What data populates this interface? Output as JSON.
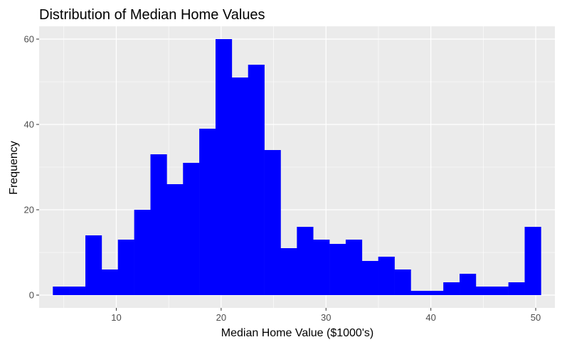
{
  "chart_data": {
    "type": "bar",
    "subtype": "histogram",
    "title": "Distribution of Median Home Values",
    "xlabel": "Median Home Value ($1000's)",
    "ylabel": "Frequency",
    "xlim": [
      2.64,
      51.83
    ],
    "ylim": [
      -3,
      63
    ],
    "x_ticks": [
      10,
      20,
      30,
      40,
      50
    ],
    "y_ticks": [
      0,
      20,
      40,
      60
    ],
    "bin_width": 1.5517,
    "bin_start": 3.9483,
    "counts": [
      2,
      2,
      14,
      6,
      13,
      20,
      33,
      26,
      31,
      39,
      60,
      51,
      54,
      34,
      11,
      16,
      13,
      12,
      13,
      8,
      9,
      6,
      1,
      1,
      3,
      5,
      2,
      2,
      3,
      16
    ],
    "fill_color": "#0000ff",
    "panel_background": "#ebebeb",
    "grid": true,
    "legend": "none"
  }
}
